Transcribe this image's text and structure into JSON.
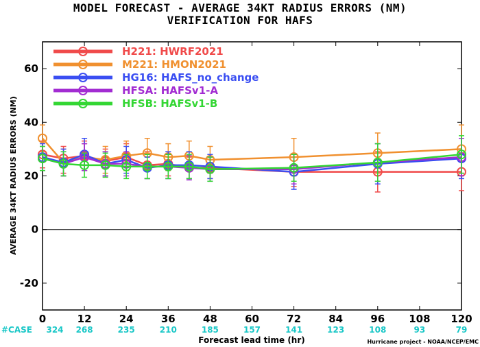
{
  "header": {
    "title": "MODEL FORECAST - AVERAGE 34KT RADIUS ERRORS (NM)",
    "subtitle": "VERIFICATION FOR HAFS"
  },
  "footer": {
    "case_label": "#CASE",
    "credit": "Hurricane project - NOAA/NCEP/EMC"
  },
  "chart_data": {
    "type": "line",
    "title": "MODEL FORECAST - AVERAGE 34KT RADIUS ERRORS (NM)",
    "subtitle": "VERIFICATION FOR HAFS",
    "xlabel": "Forecast lead time (hr)",
    "ylabel": "AVERAGE 34KT RADIUS ERRORS (NM)",
    "xlim": [
      0,
      120
    ],
    "ylim": [
      -30,
      70
    ],
    "x_ticks": [
      0,
      12,
      24,
      36,
      48,
      60,
      72,
      84,
      96,
      108,
      120
    ],
    "y_ticks": [
      -20,
      0,
      20,
      40,
      60
    ],
    "zero_line": true,
    "grid": false,
    "legend_position": "top-left",
    "case_counts": {
      "x": [
        0,
        12,
        24,
        36,
        48,
        60,
        72,
        84,
        96,
        108,
        120
      ],
      "values": [
        "324",
        "268",
        "235",
        "210",
        "185",
        "157",
        "141",
        "123",
        "108",
        "93",
        "79"
      ]
    },
    "x": [
      0,
      6,
      12,
      18,
      24,
      30,
      36,
      42,
      48,
      72,
      96,
      120
    ],
    "series": [
      {
        "code": "H221",
        "name": "HWRF2021",
        "color": "#f04a4a",
        "values": [
          28,
          26.5,
          27.5,
          25.5,
          27,
          24,
          24.5,
          23,
          23,
          21.5,
          21.5,
          21.5
        ],
        "lower": [
          23,
          21,
          22,
          20,
          22,
          19,
          20,
          19,
          19,
          16,
          14,
          14.5
        ],
        "upper": [
          33,
          31,
          33,
          30,
          32,
          29,
          29,
          27,
          27,
          27,
          29,
          28.5
        ]
      },
      {
        "code": "M221",
        "name": "HMON2021",
        "color": "#f0902f",
        "values": [
          34,
          25,
          27,
          26,
          27.5,
          28.5,
          27,
          27.5,
          26,
          27,
          28.5,
          30
        ],
        "lower": [
          29,
          20,
          22,
          21,
          22,
          23,
          22,
          22,
          21,
          20,
          21,
          21
        ],
        "upper": [
          39,
          30,
          32,
          31,
          33,
          34,
          32,
          33,
          31,
          34,
          36,
          39
        ]
      },
      {
        "code": "HG16",
        "name": "HAFS_no_change",
        "color": "#3a4ef2",
        "values": [
          27,
          25,
          28,
          24.5,
          26,
          23,
          24,
          24,
          23.5,
          21.5,
          24.5,
          26.5
        ],
        "lower": [
          22,
          20,
          22,
          20,
          21,
          19,
          19,
          19,
          19,
          15,
          17,
          19
        ],
        "upper": [
          32,
          30,
          34,
          29,
          31,
          27,
          29,
          29,
          28,
          28,
          32,
          34
        ]
      },
      {
        "code": "HFSA",
        "name": "HAFSv1-A",
        "color": "#a22cd2",
        "values": [
          26.5,
          24.5,
          27,
          24.5,
          24.5,
          23.5,
          23.5,
          23,
          22.5,
          22.5,
          25,
          27
        ],
        "lower": [
          22,
          20,
          22,
          20,
          20,
          19,
          19,
          18.5,
          18,
          17,
          18,
          20
        ],
        "upper": [
          31,
          29,
          32,
          29,
          29,
          28,
          28,
          27.5,
          27,
          28,
          32,
          34
        ]
      },
      {
        "code": "HFSB",
        "name": "HAFSv1-B",
        "color": "#33d633",
        "values": [
          26.5,
          24.5,
          24,
          24,
          23.5,
          23.5,
          23.5,
          23.5,
          22.5,
          23,
          25,
          28
        ],
        "lower": [
          22,
          20,
          19.5,
          19.5,
          19,
          19,
          19,
          19,
          18,
          18,
          18,
          21
        ],
        "upper": [
          31,
          29,
          28.5,
          28.5,
          28,
          28,
          28,
          28,
          27,
          28,
          32,
          35
        ]
      }
    ]
  }
}
